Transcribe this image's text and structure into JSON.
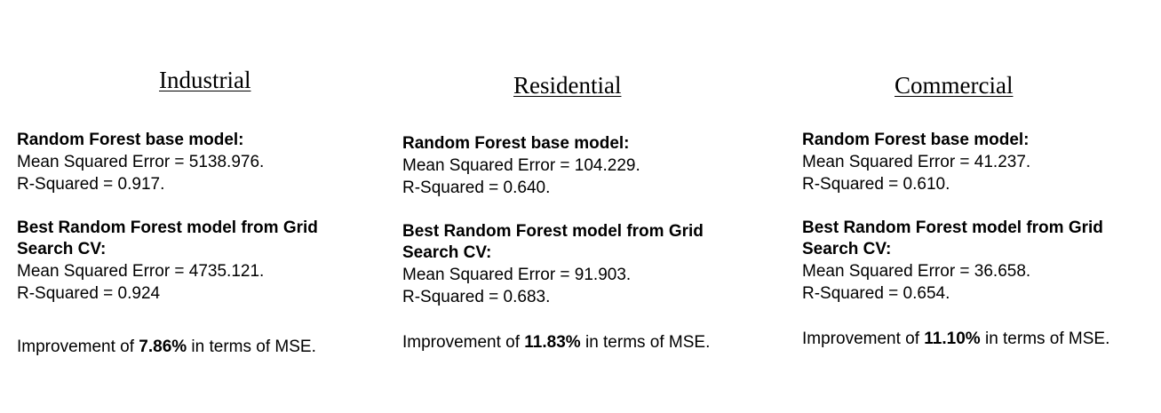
{
  "columns": [
    {
      "title": "Industrial",
      "base": {
        "heading": "Random Forest base model:",
        "mse": "Mean Squared Error  = 5138.976.",
        "r2": "R-Squared = 0.917."
      },
      "best": {
        "heading": "Best Random Forest model from Grid Search CV:",
        "mse": "Mean Squared Error  = 4735.121.",
        "r2": "R-Squared  = 0.924"
      },
      "improvement": {
        "prefix": "Improvement of ",
        "value": "7.86%",
        "suffix": " in terms of MSE."
      }
    },
    {
      "title": "Residential",
      "base": {
        "heading": "Random Forest base model:",
        "mse": "Mean Squared Error  = 104.229.",
        "r2": "R-Squared  = 0.640."
      },
      "best": {
        "heading": "Best Random Forest model from Grid Search CV:",
        "mse": "Mean Squared Error  = 91.903.",
        "r2": "R-Squared  = 0.683."
      },
      "improvement": {
        "prefix": "Improvement of ",
        "value": "11.83%",
        "suffix": " in terms of MSE."
      }
    },
    {
      "title": "Commercial",
      "base": {
        "heading": "Random Forest base model:",
        "mse": "Mean Squared Error  = 41.237.",
        "r2": "R-Squared = 0.610."
      },
      "best": {
        "heading": "Best Random Forest model from Grid Search CV:",
        "mse": "Mean Squared Error  = 36.658.",
        "r2": "R-Squared  = 0.654."
      },
      "improvement": {
        "prefix": "Improvement of ",
        "value": "11.10%",
        "suffix": " in terms of MSE."
      }
    }
  ]
}
